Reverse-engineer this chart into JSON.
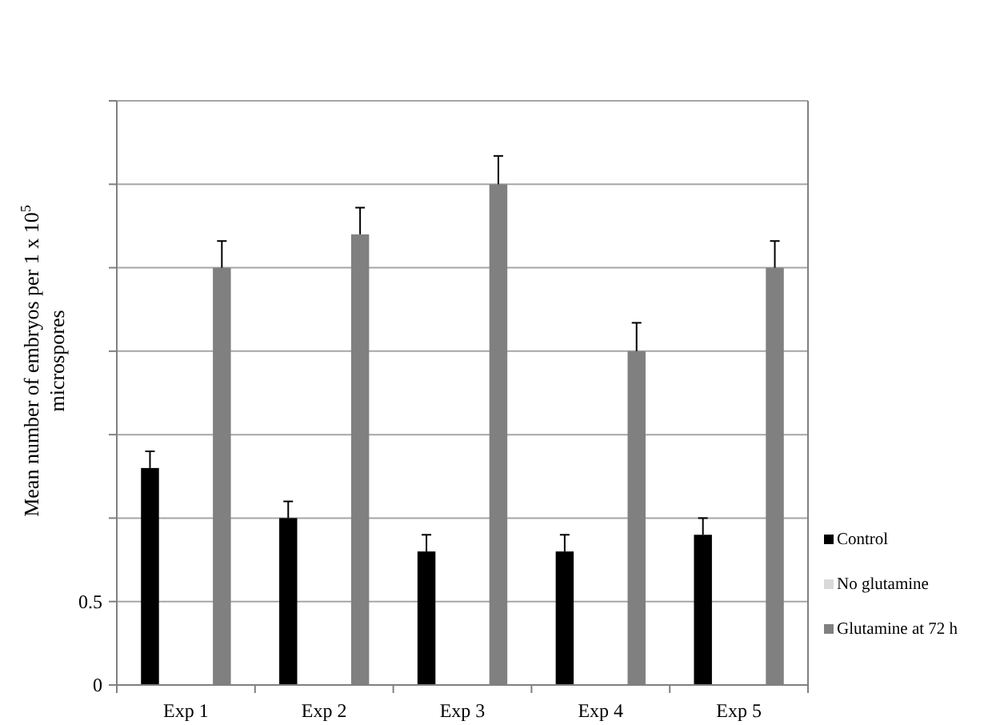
{
  "chart_data": {
    "type": "bar",
    "ylabel": "Mean number of embryos per 1 x 10$^{5}$ microspores",
    "categories": [
      "Exp 1",
      "Exp 2",
      "Exp 3",
      "Exp 4",
      "Exp 5"
    ],
    "series": [
      {
        "name": "Control",
        "color": "#000000",
        "values": [
          1.3,
          1.0,
          0.8,
          0.8,
          0.9
        ],
        "errors": [
          0.1,
          0.1,
          0.1,
          0.1,
          0.1
        ]
      },
      {
        "name": "No glutamine",
        "color": "#d9d9d9",
        "values": [
          0,
          0,
          0,
          0,
          0
        ]
      },
      {
        "name": "Glutamine at 72 h",
        "color": "#808080",
        "values": [
          2.5,
          2.7,
          3.0,
          2.0,
          2.5
        ],
        "errors": [
          0.16,
          0.16,
          0.17,
          0.17,
          0.16
        ]
      }
    ],
    "ylim": [
      0,
      3.5
    ],
    "yticks": [
      0,
      0.5,
      {
        "value": 1,
        "label": null
      },
      {
        "value": 1.5,
        "label": null
      },
      {
        "value": 2,
        "label": null
      },
      {
        "value": 2.5,
        "label": null
      },
      {
        "value": 3,
        "label": null
      },
      {
        "value": 3.5,
        "label": null
      }
    ],
    "grid": "y",
    "legend": "right"
  }
}
